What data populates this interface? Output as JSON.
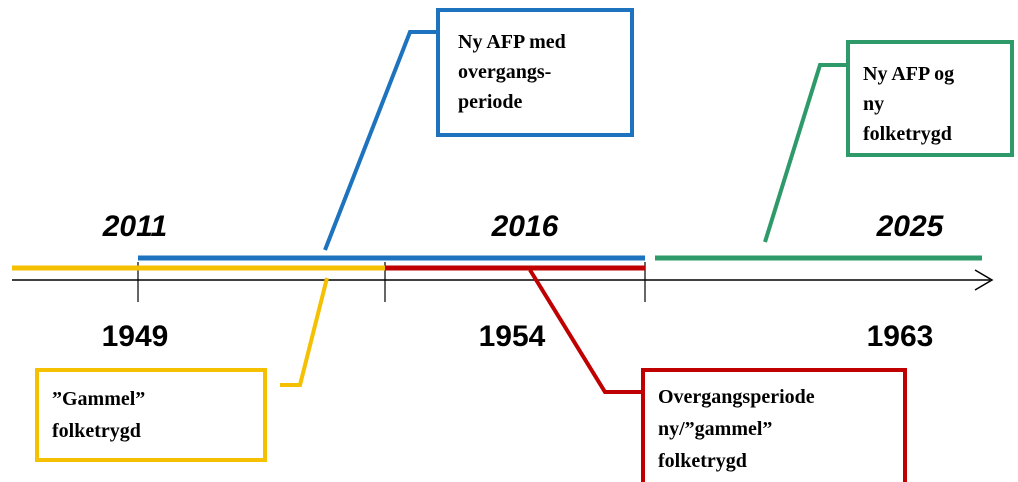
{
  "timeline": {
    "top_labels": [
      "2011",
      "2016",
      "2025"
    ],
    "bottom_labels": [
      "1949",
      "1954",
      "1963"
    ]
  },
  "boxes": [
    {
      "lines": [
        "Ny AFP med",
        "overgangs-",
        "periode"
      ]
    },
    {
      "lines": [
        "Ny AFP og",
        "ny",
        "folketrygd"
      ]
    },
    {
      "lines": [
        "”Gammel”",
        "folketrygd"
      ]
    },
    {
      "lines": [
        "Overgangsperiode",
        "ny/”gammel”",
        "folketrygd"
      ]
    }
  ]
}
